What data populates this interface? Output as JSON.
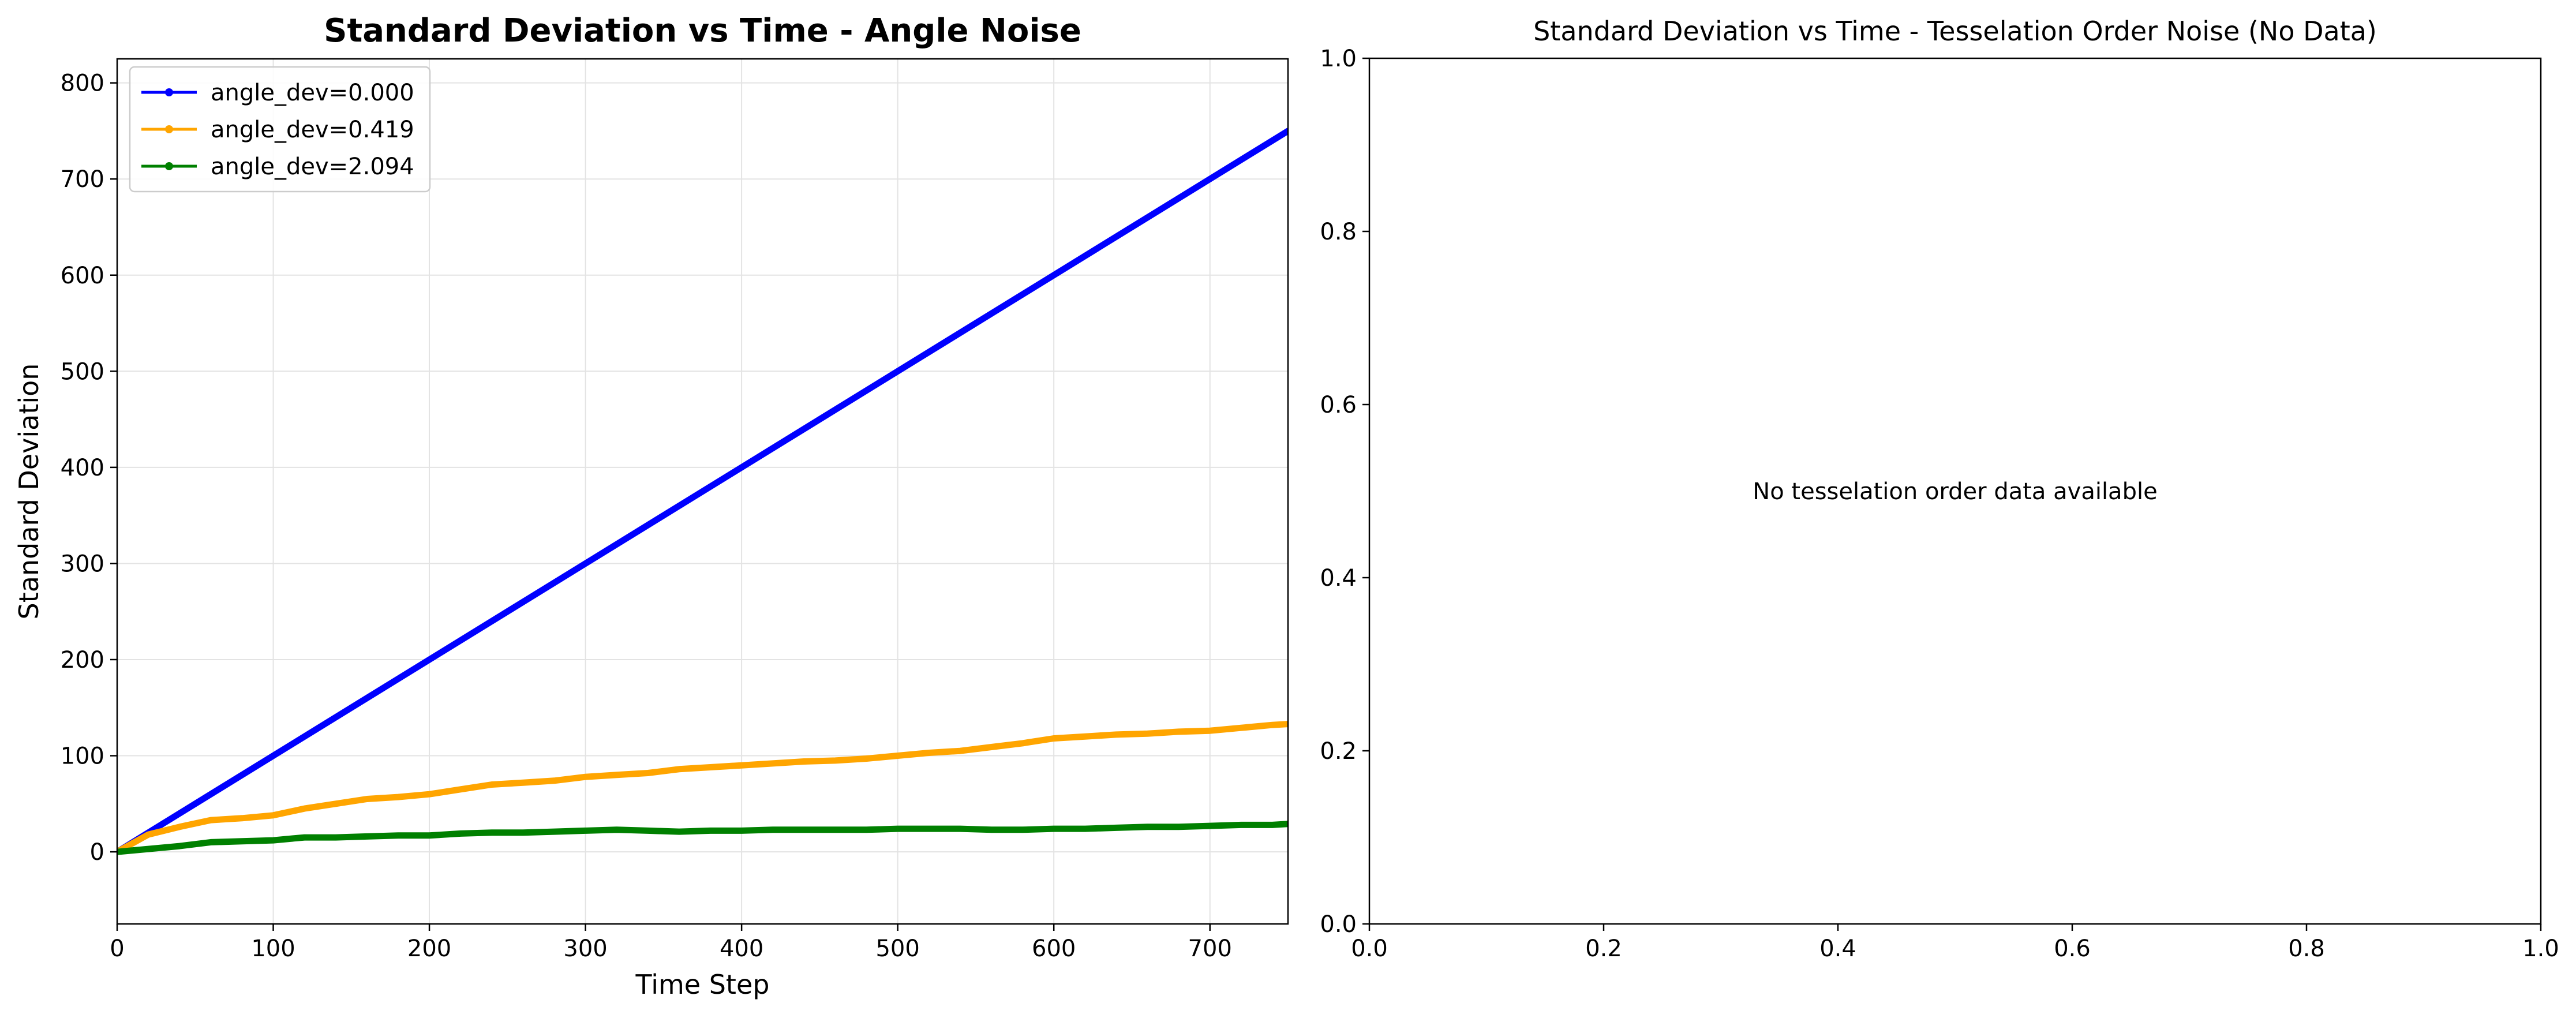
{
  "chart_data": [
    {
      "type": "line",
      "title": "Standard Deviation vs Time - Angle Noise",
      "xlabel": "Time Step",
      "ylabel": "Standard Deviation",
      "xlim": [
        0,
        750
      ],
      "ylim": [
        -75,
        825
      ],
      "xticks": [
        0,
        100,
        200,
        300,
        400,
        500,
        600,
        700
      ],
      "yticks": [
        0,
        100,
        200,
        300,
        400,
        500,
        600,
        700,
        800
      ],
      "grid": true,
      "legend_position": "upper-left",
      "series": [
        {
          "name": "angle_dev=0.000",
          "color": "#0000ff",
          "x": [
            0,
            750
          ],
          "y": [
            0,
            750
          ]
        },
        {
          "name": "angle_dev=0.419",
          "color": "#ffa500",
          "x": [
            0,
            20,
            40,
            60,
            80,
            100,
            120,
            140,
            160,
            180,
            200,
            220,
            240,
            260,
            280,
            300,
            320,
            340,
            360,
            380,
            400,
            420,
            440,
            460,
            480,
            500,
            520,
            540,
            560,
            580,
            600,
            620,
            640,
            660,
            680,
            700,
            720,
            740,
            750
          ],
          "y": [
            0,
            18,
            26,
            33,
            35,
            38,
            45,
            50,
            55,
            57,
            60,
            65,
            70,
            72,
            74,
            78,
            80,
            82,
            86,
            88,
            90,
            92,
            94,
            95,
            97,
            100,
            103,
            105,
            109,
            113,
            118,
            120,
            122,
            123,
            125,
            126,
            129,
            132,
            133
          ]
        },
        {
          "name": "angle_dev=2.094",
          "color": "#008000",
          "x": [
            0,
            20,
            40,
            60,
            80,
            100,
            120,
            140,
            160,
            180,
            200,
            220,
            240,
            260,
            280,
            300,
            320,
            340,
            360,
            380,
            400,
            420,
            440,
            460,
            480,
            500,
            520,
            540,
            560,
            580,
            600,
            620,
            640,
            660,
            680,
            700,
            720,
            740,
            750
          ],
          "y": [
            0,
            3,
            6,
            10,
            11,
            12,
            15,
            15,
            16,
            17,
            17,
            19,
            20,
            20,
            21,
            22,
            23,
            22,
            21,
            22,
            22,
            23,
            23,
            23,
            23,
            24,
            24,
            24,
            23,
            23,
            24,
            24,
            25,
            26,
            26,
            27,
            28,
            28,
            29
          ]
        }
      ]
    },
    {
      "type": "line",
      "title": "Standard Deviation vs Time - Tesselation Order Noise (No Data)",
      "xlabel": "",
      "ylabel": "",
      "xlim": [
        0,
        1
      ],
      "ylim": [
        0,
        1
      ],
      "xticks": [
        0.0,
        0.2,
        0.4,
        0.6,
        0.8,
        1.0
      ],
      "yticks": [
        0.0,
        0.2,
        0.4,
        0.6,
        0.8,
        1.0
      ],
      "grid": false,
      "annotation": "No tesselation order data available",
      "series": []
    }
  ]
}
